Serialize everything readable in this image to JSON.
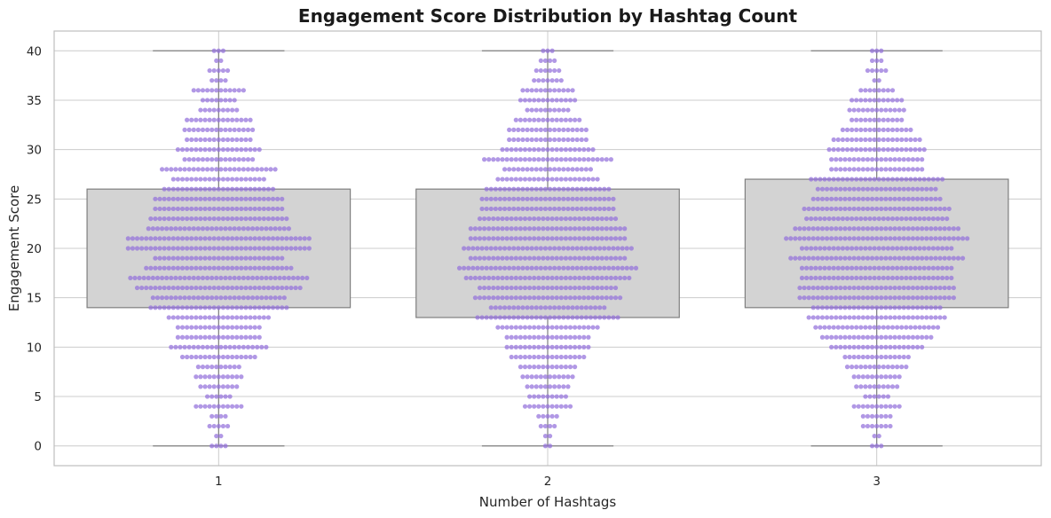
{
  "colors": {
    "background": "#ffffff",
    "grid": "#cccccc",
    "spine": "#bfbfbf",
    "box_fill": "#d3d3d3",
    "box_edge": "#7f7f7f",
    "point": "#9370db"
  },
  "chart_data": {
    "type": "box-swarm",
    "title": "Engagement Score Distribution by Hashtag Count",
    "xlabel": "Number of Hashtags",
    "ylabel": "Engagement Score",
    "categories": [
      "1",
      "2",
      "3"
    ],
    "ylim": [
      -2,
      42
    ],
    "yticks": [
      0,
      5,
      10,
      15,
      20,
      25,
      30,
      35,
      40
    ],
    "grid": true,
    "legend": "none",
    "boxes": [
      {
        "category": "1",
        "min": 0,
        "q1": 14,
        "median": 20,
        "q3": 26,
        "max": 40
      },
      {
        "category": "2",
        "min": 0,
        "q1": 13,
        "median": 19,
        "q3": 26,
        "max": 40
      },
      {
        "category": "3",
        "min": 0,
        "q1": 14,
        "median": 20,
        "q3": 27,
        "max": 40
      }
    ],
    "score_counts": [
      {
        "category": "1",
        "counts": [
          4,
          2,
          5,
          4,
          11,
          6,
          9,
          11,
          10,
          17,
          22,
          19,
          19,
          23,
          31,
          30,
          37,
          40,
          33,
          29,
          41,
          41,
          32,
          31,
          29,
          29,
          25,
          21,
          26,
          16,
          19,
          15,
          16,
          15,
          9,
          8,
          12,
          4,
          5,
          2,
          3
        ]
      },
      {
        "category": "2",
        "counts": [
          2,
          2,
          4,
          5,
          11,
          9,
          10,
          12,
          13,
          17,
          19,
          19,
          23,
          32,
          26,
          33,
          31,
          37,
          40,
          35,
          38,
          35,
          35,
          31,
          30,
          30,
          28,
          23,
          20,
          29,
          21,
          18,
          18,
          15,
          10,
          13,
          12,
          7,
          6,
          4,
          3
        ]
      },
      {
        "category": "3",
        "counts": [
          3,
          2,
          7,
          7,
          11,
          6,
          10,
          11,
          14,
          15,
          21,
          25,
          28,
          31,
          29,
          35,
          35,
          34,
          34,
          39,
          34,
          41,
          37,
          32,
          33,
          29,
          27,
          30,
          21,
          21,
          22,
          20,
          16,
          12,
          13,
          12,
          8,
          2,
          5,
          3,
          3
        ]
      }
    ]
  }
}
